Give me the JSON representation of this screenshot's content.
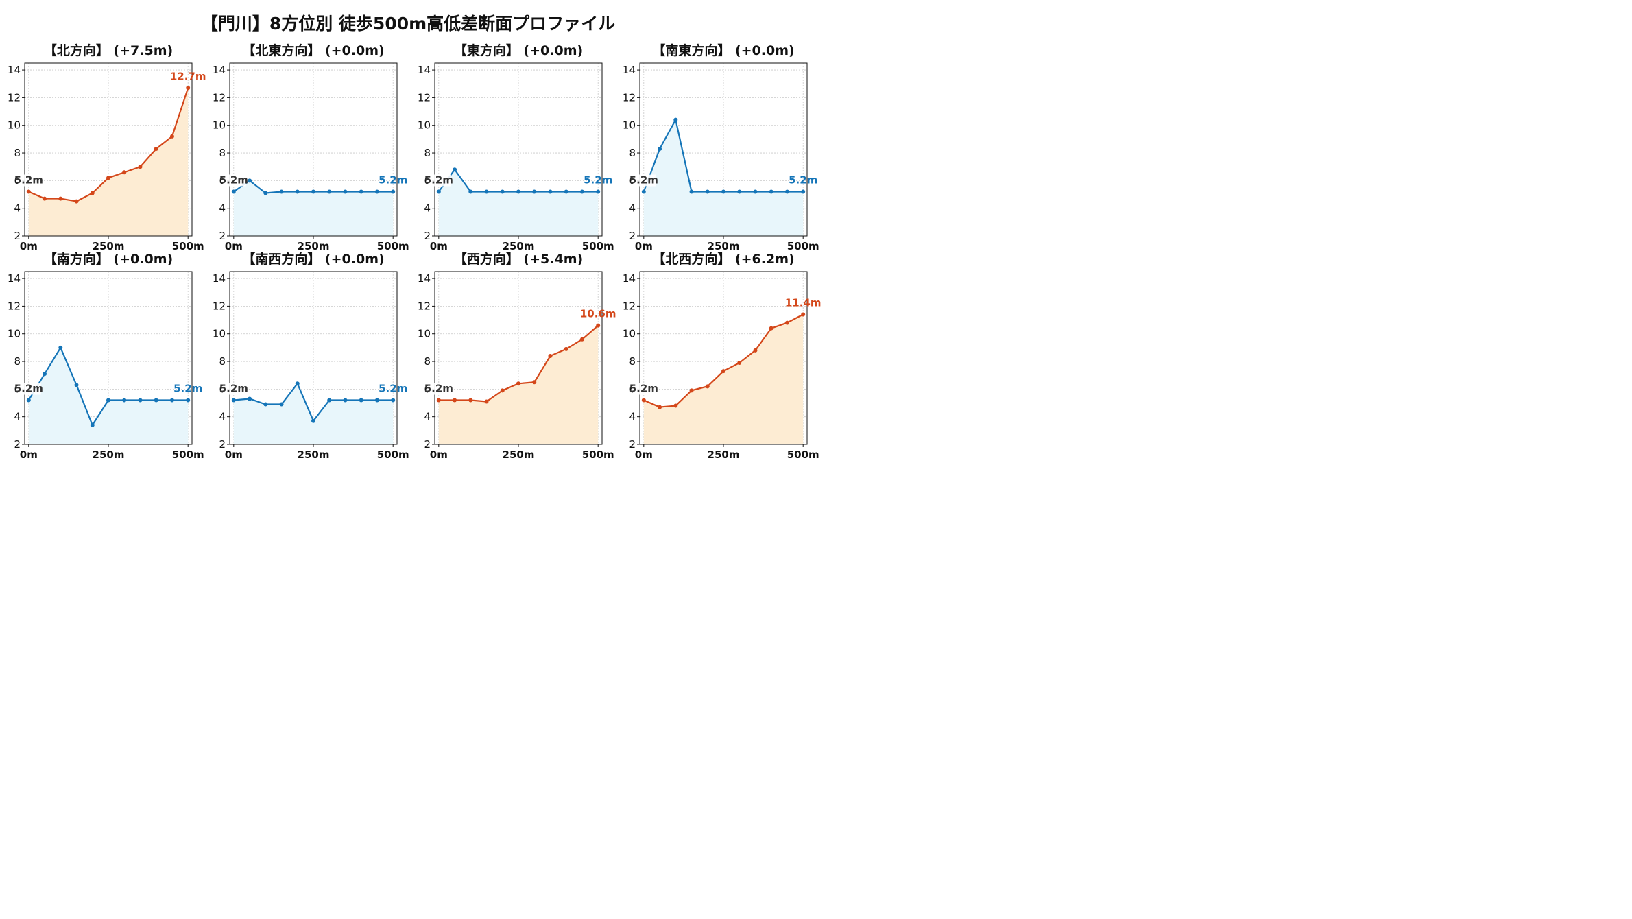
{
  "title": "【門川】8方位別 徒歩500m高低差断面プロファイル",
  "colors": {
    "up_line": "#d4471a",
    "up_fill": "#fdecd3",
    "flat_line": "#1575b8",
    "flat_fill": "#e8f6fb",
    "start_label": "#333333"
  },
  "chart_data": [
    {
      "type": "line",
      "title": "【北方向】 (+7.5m)",
      "trend": "up",
      "x": [
        0,
        50,
        100,
        150,
        200,
        250,
        300,
        350,
        400,
        450,
        500
      ],
      "values": [
        5.2,
        4.7,
        4.7,
        4.5,
        5.1,
        6.2,
        6.6,
        7.0,
        8.3,
        9.2,
        12.7
      ],
      "start_label": "5.2m",
      "end_label": "12.7m",
      "xticks": [
        "0m",
        "250m",
        "500m"
      ],
      "yticks": [
        2,
        4,
        6,
        8,
        10,
        12,
        14
      ],
      "ylim": [
        2,
        14.5
      ],
      "grid": true
    },
    {
      "type": "line",
      "title": "【北東方向】 (+0.0m)",
      "trend": "flat",
      "x": [
        0,
        50,
        100,
        150,
        200,
        250,
        300,
        350,
        400,
        450,
        500
      ],
      "values": [
        5.2,
        6.0,
        5.1,
        5.2,
        5.2,
        5.2,
        5.2,
        5.2,
        5.2,
        5.2,
        5.2
      ],
      "start_label": "5.2m",
      "end_label": "5.2m",
      "xticks": [
        "0m",
        "250m",
        "500m"
      ],
      "yticks": [
        2,
        4,
        6,
        8,
        10,
        12,
        14
      ],
      "ylim": [
        2,
        14.5
      ],
      "grid": true
    },
    {
      "type": "line",
      "title": "【東方向】 (+0.0m)",
      "trend": "flat",
      "x": [
        0,
        50,
        100,
        150,
        200,
        250,
        300,
        350,
        400,
        450,
        500
      ],
      "values": [
        5.2,
        6.8,
        5.2,
        5.2,
        5.2,
        5.2,
        5.2,
        5.2,
        5.2,
        5.2,
        5.2
      ],
      "start_label": "5.2m",
      "end_label": "5.2m",
      "xticks": [
        "0m",
        "250m",
        "500m"
      ],
      "yticks": [
        2,
        4,
        6,
        8,
        10,
        12,
        14
      ],
      "ylim": [
        2,
        14.5
      ],
      "grid": true
    },
    {
      "type": "line",
      "title": "【南東方向】 (+0.0m)",
      "trend": "flat",
      "x": [
        0,
        50,
        100,
        150,
        200,
        250,
        300,
        350,
        400,
        450,
        500
      ],
      "values": [
        5.2,
        8.3,
        10.4,
        5.2,
        5.2,
        5.2,
        5.2,
        5.2,
        5.2,
        5.2,
        5.2
      ],
      "start_label": "5.2m",
      "end_label": "5.2m",
      "xticks": [
        "0m",
        "250m",
        "500m"
      ],
      "yticks": [
        2,
        4,
        6,
        8,
        10,
        12,
        14
      ],
      "ylim": [
        2,
        14.5
      ],
      "grid": true
    },
    {
      "type": "line",
      "title": "【南方向】 (+0.0m)",
      "trend": "flat",
      "x": [
        0,
        50,
        100,
        150,
        200,
        250,
        300,
        350,
        400,
        450,
        500
      ],
      "values": [
        5.2,
        7.1,
        9.0,
        6.3,
        3.4,
        5.2,
        5.2,
        5.2,
        5.2,
        5.2,
        5.2
      ],
      "start_label": "5.2m",
      "end_label": "5.2m",
      "xticks": [
        "0m",
        "250m",
        "500m"
      ],
      "yticks": [
        2,
        4,
        6,
        8,
        10,
        12,
        14
      ],
      "ylim": [
        2,
        14.5
      ],
      "grid": true
    },
    {
      "type": "line",
      "title": "【南西方向】 (+0.0m)",
      "trend": "flat",
      "x": [
        0,
        50,
        100,
        150,
        200,
        250,
        300,
        350,
        400,
        450,
        500
      ],
      "values": [
        5.2,
        5.3,
        4.9,
        4.9,
        6.4,
        3.7,
        5.2,
        5.2,
        5.2,
        5.2,
        5.2
      ],
      "start_label": "5.2m",
      "end_label": "5.2m",
      "xticks": [
        "0m",
        "250m",
        "500m"
      ],
      "yticks": [
        2,
        4,
        6,
        8,
        10,
        12,
        14
      ],
      "ylim": [
        2,
        14.5
      ],
      "grid": true
    },
    {
      "type": "line",
      "title": "【西方向】 (+5.4m)",
      "trend": "up",
      "x": [
        0,
        50,
        100,
        150,
        200,
        250,
        300,
        350,
        400,
        450,
        500
      ],
      "values": [
        5.2,
        5.2,
        5.2,
        5.1,
        5.9,
        6.4,
        6.5,
        8.4,
        8.9,
        9.6,
        10.6
      ],
      "start_label": "5.2m",
      "end_label": "10.6m",
      "xticks": [
        "0m",
        "250m",
        "500m"
      ],
      "yticks": [
        2,
        4,
        6,
        8,
        10,
        12,
        14
      ],
      "ylim": [
        2,
        14.5
      ],
      "grid": true
    },
    {
      "type": "line",
      "title": "【北西方向】 (+6.2m)",
      "trend": "up",
      "x": [
        0,
        50,
        100,
        150,
        200,
        250,
        300,
        350,
        400,
        450,
        500
      ],
      "values": [
        5.2,
        4.7,
        4.8,
        5.9,
        6.2,
        7.3,
        7.9,
        8.8,
        10.4,
        10.8,
        11.4
      ],
      "start_label": "5.2m",
      "end_label": "11.4m",
      "xticks": [
        "0m",
        "250m",
        "500m"
      ],
      "yticks": [
        2,
        4,
        6,
        8,
        10,
        12,
        14
      ],
      "ylim": [
        2,
        14.5
      ],
      "grid": true
    }
  ]
}
